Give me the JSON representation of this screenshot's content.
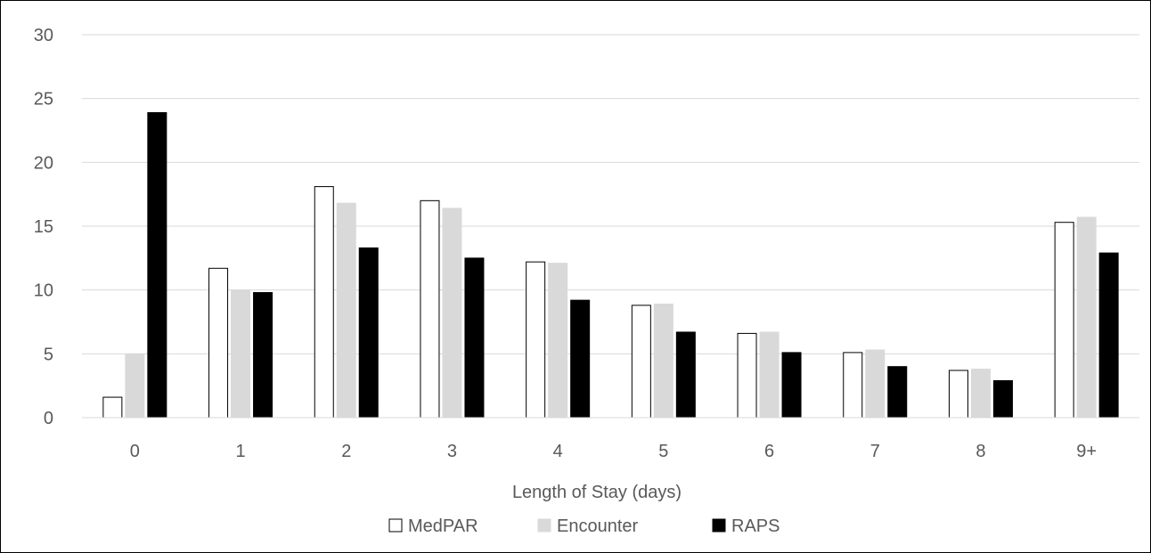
{
  "chart_data": {
    "type": "bar",
    "title": "",
    "xlabel": "Length of Stay (days)",
    "ylabel": "",
    "ylim": [
      0,
      30
    ],
    "yticks": [
      0,
      5,
      10,
      15,
      20,
      25,
      30
    ],
    "grid": true,
    "legend_position": "bottom",
    "categories": [
      "0",
      "1",
      "2",
      "3",
      "4",
      "5",
      "6",
      "7",
      "8",
      "9+"
    ],
    "series": [
      {
        "name": "MedPAR",
        "fill": "#ffffff",
        "stroke": "#000000",
        "values": [
          1.6,
          11.7,
          18.1,
          17.0,
          12.2,
          8.8,
          6.6,
          5.1,
          3.7,
          15.3
        ]
      },
      {
        "name": "Encounter",
        "fill": "#d9d9d9",
        "stroke": "#d9d9d9",
        "values": [
          5.0,
          10.0,
          16.8,
          16.4,
          12.1,
          8.9,
          6.7,
          5.3,
          3.8,
          15.7
        ]
      },
      {
        "name": "RAPS",
        "fill": "#000000",
        "stroke": "#000000",
        "values": [
          23.9,
          9.8,
          13.3,
          12.5,
          9.2,
          6.7,
          5.1,
          4.0,
          2.9,
          12.9
        ]
      }
    ]
  }
}
